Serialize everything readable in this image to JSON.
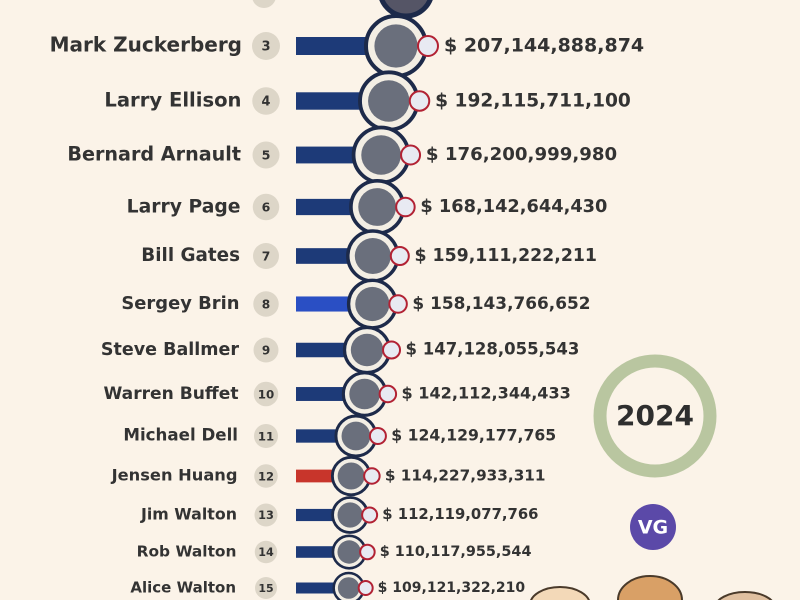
{
  "chart_data": {
    "type": "bar",
    "categories": [
      "Mark Zuckerberg",
      "Larry Ellison",
      "Bernard Arnault",
      "Larry Page",
      "Bill Gates",
      "Sergey Brin",
      "Steve Ballmer",
      "Warren Buffet",
      "Michael Dell",
      "Jensen Huang",
      "Jim Walton",
      "Rob Walton",
      "Alice Walton"
    ],
    "ranks": [
      3,
      4,
      5,
      6,
      7,
      8,
      9,
      10,
      11,
      12,
      13,
      14,
      15
    ],
    "values": [
      207144888874,
      192115711100,
      176200999980,
      168142644430,
      159111222211,
      158143766652,
      147128055543,
      142112344433,
      124129177765,
      114227933311,
      112119077766,
      110117955544,
      109121322210
    ],
    "value_labels": [
      "$ 207,144,888,874",
      "$ 192,115,711,100",
      "$ 176,200,999,980",
      "$ 168,142,644,430",
      "$ 159,111,222,211",
      "$ 158,143,766,652",
      "$ 147,128,055,543",
      "$ 142,112,344,433",
      "$ 124,129,177,765",
      "$ 114,227,933,311",
      "$ 112,119,077,766",
      "$ 110,117,955,544",
      "$ 109,121,322,210"
    ],
    "colors": [
      "#1d3a78",
      "#1d3a78",
      "#1d3a78",
      "#1d3a78",
      "#1d3a78",
      "#2a4fc4",
      "#1d3a78",
      "#1d3a78",
      "#1d3a78",
      "#c8352b",
      "#1d3a78",
      "#1d3a78",
      "#1d3a78"
    ],
    "year": "2024",
    "logo": "VG"
  }
}
